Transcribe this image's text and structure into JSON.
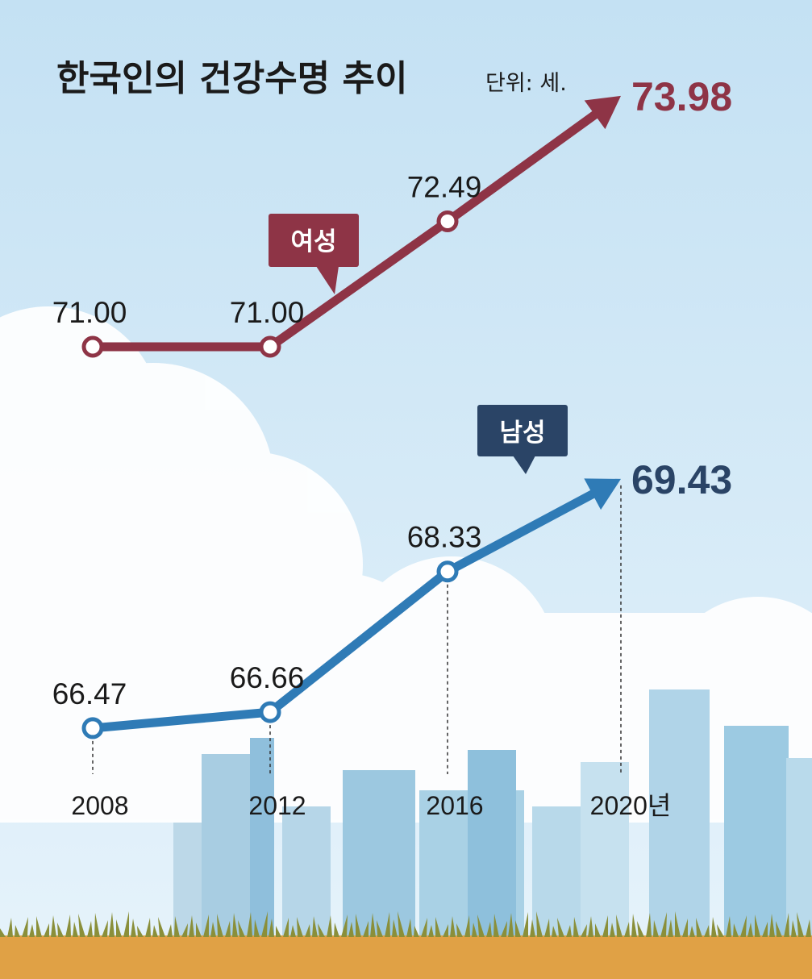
{
  "title": "한국인의 건강수명 추이",
  "unit_label": "단위: 세.",
  "colors": {
    "female": "#8e3446",
    "male": "#2f7bb6",
    "male_final": "#2a4466",
    "male_tag": "#2a4466",
    "sky_top": "#c4e1f3",
    "sky_bottom": "#e6f3fb",
    "ground": "#e0a145",
    "grass": "#8a8f3a"
  },
  "chart_data": {
    "type": "line",
    "x": [
      "2008",
      "2012",
      "2016",
      "2020년"
    ],
    "series": [
      {
        "name": "여성",
        "values": [
          71.0,
          71.0,
          72.49,
          73.98
        ],
        "labels": [
          "71.00",
          "71.00",
          "72.49",
          "73.98"
        ],
        "color": "#8e3446"
      },
      {
        "name": "남성",
        "values": [
          66.47,
          66.66,
          68.33,
          69.43
        ],
        "labels": [
          "66.47",
          "66.66",
          "68.33",
          "69.43"
        ],
        "color": "#2f7bb6"
      }
    ],
    "grid": false,
    "legend": "inline tags"
  }
}
